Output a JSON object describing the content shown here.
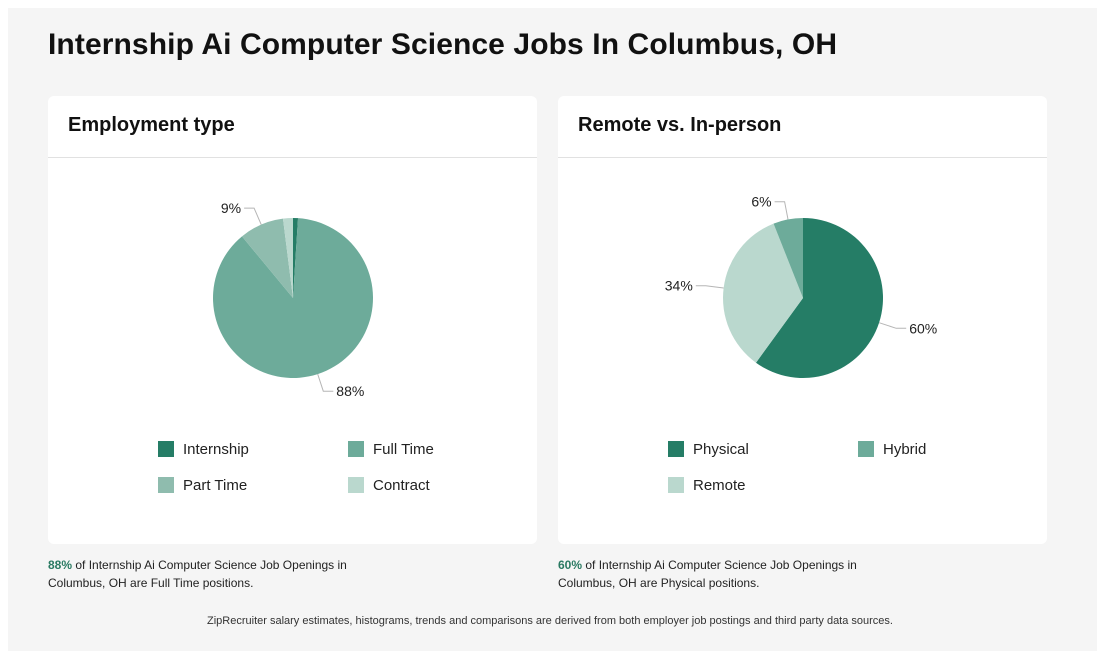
{
  "page": {
    "title": "Internship Ai Computer Science Jobs In Columbus, OH",
    "footnote": "ZipRecruiter salary estimates, histograms, trends and comparisons are derived from both employer job postings and third party data sources."
  },
  "cards": [
    {
      "title": "Employment type",
      "caption": {
        "highlight": "88%",
        "text": " of Internship Ai Computer Science Job Openings in Columbus, OH are Full Time positions."
      }
    },
    {
      "title": "Remote vs. In-person",
      "caption": {
        "highlight": "60%",
        "text": " of Internship Ai Computer Science Job Openings in Columbus, OH are Physical positions."
      }
    }
  ],
  "chart_data": [
    {
      "type": "pie",
      "title": "Employment type",
      "categories": [
        "Internship",
        "Full Time",
        "Part Time",
        "Contract"
      ],
      "values": [
        1,
        88,
        9,
        2
      ],
      "colors": [
        "#257d66",
        "#6dab9a",
        "#8fbcae",
        "#bad8ce"
      ],
      "data_labels": [
        "",
        "88%",
        "9%",
        ""
      ],
      "legend_position": "bottom"
    },
    {
      "type": "pie",
      "title": "Remote vs. In-person",
      "categories": [
        "Physical",
        "Remote",
        "Hybrid"
      ],
      "legend_order": [
        "Physical",
        "Hybrid",
        "Remote"
      ],
      "values": [
        60,
        34,
        6
      ],
      "colors": [
        "#257d66",
        "#bad8ce",
        "#6dab9a"
      ],
      "data_labels": [
        "60%",
        "34%",
        "6%"
      ],
      "legend_position": "bottom"
    }
  ]
}
